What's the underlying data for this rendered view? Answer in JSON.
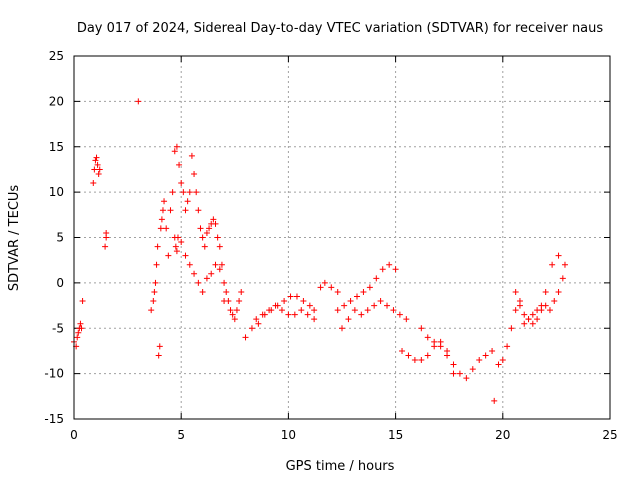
{
  "chart_data": {
    "type": "scatter",
    "title": "Day 017 of 2024, Sidereal Day-to-day VTEC variation (SDTVAR) for receiver naus",
    "xlabel": "GPS time / hours",
    "ylabel": "SDTVAR / TECUs",
    "xlim": [
      0,
      25
    ],
    "ylim": [
      -15,
      25
    ],
    "xticks": [
      "0",
      "5",
      "10",
      "15",
      "20",
      "25"
    ],
    "yticks": [
      "25",
      "20",
      "15",
      "10",
      "5",
      "0",
      "-5",
      "-10",
      "-15"
    ],
    "grid": true,
    "marker": "+",
    "color": "#ff0000",
    "series": [
      {
        "name": "SDTVAR",
        "x": [
          0.0,
          0.1,
          0.15,
          0.2,
          0.25,
          0.3,
          0.35,
          0.4,
          0.9,
          0.95,
          1.0,
          1.05,
          1.1,
          1.15,
          1.2,
          1.45,
          1.5,
          1.5,
          3.0,
          3.6,
          3.7,
          3.75,
          3.8,
          3.85,
          3.9,
          3.95,
          4.0,
          4.05,
          4.1,
          4.15,
          4.2,
          4.3,
          4.4,
          4.5,
          4.6,
          4.7,
          4.8,
          4.9,
          5.0,
          5.1,
          5.2,
          5.3,
          5.4,
          5.5,
          5.6,
          5.7,
          5.8,
          5.9,
          6.0,
          6.1,
          6.2,
          6.3,
          6.4,
          6.5,
          6.6,
          6.7,
          6.8,
          6.9,
          7.0,
          7.1,
          7.2,
          7.3,
          7.4,
          7.5,
          7.6,
          7.7,
          7.8,
          4.7,
          4.75,
          4.8,
          4.85,
          5.0,
          5.2,
          5.4,
          5.6,
          5.8,
          6.0,
          6.2,
          6.4,
          6.6,
          6.8,
          7.0,
          8.0,
          8.3,
          8.6,
          8.9,
          9.2,
          9.5,
          9.8,
          10.1,
          10.4,
          10.7,
          11.0,
          11.2,
          8.5,
          8.8,
          9.1,
          9.4,
          9.7,
          10.0,
          10.3,
          10.6,
          10.9,
          11.2,
          11.5,
          11.7,
          12.0,
          12.3,
          12.3,
          12.6,
          12.9,
          13.2,
          13.5,
          13.8,
          14.1,
          14.4,
          14.7,
          15.0,
          12.5,
          12.8,
          13.1,
          13.4,
          13.7,
          14.0,
          14.3,
          14.6,
          14.9,
          15.2,
          15.5,
          15.3,
          15.6,
          15.9,
          16.2,
          16.5,
          16.8,
          17.1,
          17.4,
          17.7,
          18.0,
          18.3,
          18.6,
          18.9,
          19.2,
          19.5,
          16.2,
          16.5,
          16.8,
          17.1,
          17.4,
          17.7,
          19.6,
          19.8,
          20.0,
          20.2,
          20.4,
          20.6,
          20.8,
          21.0,
          21.2,
          21.4,
          21.6,
          21.8,
          22.0,
          22.2,
          22.4,
          22.6,
          22.8,
          20.6,
          20.8,
          21.0,
          21.2,
          21.4,
          21.6,
          21.8,
          22.0,
          22.3,
          22.6,
          22.9
        ],
        "y": [
          -6.5,
          -7.0,
          -6.0,
          -5.5,
          -5.0,
          -4.5,
          -5.0,
          -2.0,
          11.0,
          12.5,
          13.5,
          13.8,
          13.0,
          12.0,
          12.5,
          4.0,
          5.0,
          5.5,
          20.0,
          -3.0,
          -2.0,
          -1.0,
          0.0,
          2.0,
          4.0,
          -8.0,
          -7.0,
          6.0,
          7.0,
          8.0,
          9.0,
          6.0,
          3.0,
          8.0,
          10.0,
          14.5,
          15.0,
          13.0,
          11.0,
          10.0,
          8.0,
          9.0,
          10.0,
          14.0,
          12.0,
          10.0,
          8.0,
          6.0,
          5.0,
          4.0,
          5.5,
          6.0,
          6.5,
          7.0,
          6.5,
          5.0,
          4.0,
          2.0,
          0.0,
          -1.0,
          -2.0,
          -3.0,
          -3.5,
          -4.0,
          -3.0,
          -2.0,
          -1.0,
          5.0,
          4.0,
          3.5,
          5.0,
          4.5,
          3.0,
          2.0,
          1.0,
          0.0,
          -1.0,
          0.5,
          1.0,
          2.0,
          1.5,
          -2.0,
          -6.0,
          -5.0,
          -4.5,
          -3.5,
          -3.0,
          -2.5,
          -2.0,
          -1.5,
          -1.5,
          -2.0,
          -2.5,
          -3.0,
          -4.0,
          -3.5,
          -3.0,
          -2.5,
          -3.0,
          -3.5,
          -3.5,
          -3.0,
          -3.5,
          -4.0,
          -0.5,
          0.0,
          -0.5,
          -1.0,
          -3.0,
          -2.5,
          -2.0,
          -1.5,
          -1.0,
          -0.5,
          0.5,
          1.5,
          2.0,
          1.5,
          -5.0,
          -4.0,
          -3.0,
          -3.5,
          -3.0,
          -2.5,
          -2.0,
          -2.5,
          -3.0,
          -3.5,
          -4.0,
          -7.5,
          -8.0,
          -8.5,
          -8.5,
          -8.0,
          -7.0,
          -6.5,
          -7.5,
          -10.0,
          -10.0,
          -10.5,
          -9.5,
          -8.5,
          -8.0,
          -7.5,
          -5.0,
          -6.0,
          -6.5,
          -7.0,
          -8.0,
          -9.0,
          -13.0,
          -9.0,
          -8.5,
          -7.0,
          -5.0,
          -3.0,
          -2.0,
          -4.5,
          -4.0,
          -3.5,
          -3.0,
          -2.5,
          -2.5,
          -3.0,
          -2.0,
          -1.0,
          0.5,
          -1.0,
          -2.5,
          -3.5,
          -4.0,
          -4.5,
          -4.0,
          -3.0,
          -1.0,
          2.0,
          3.0,
          2.0
        ]
      }
    ]
  }
}
